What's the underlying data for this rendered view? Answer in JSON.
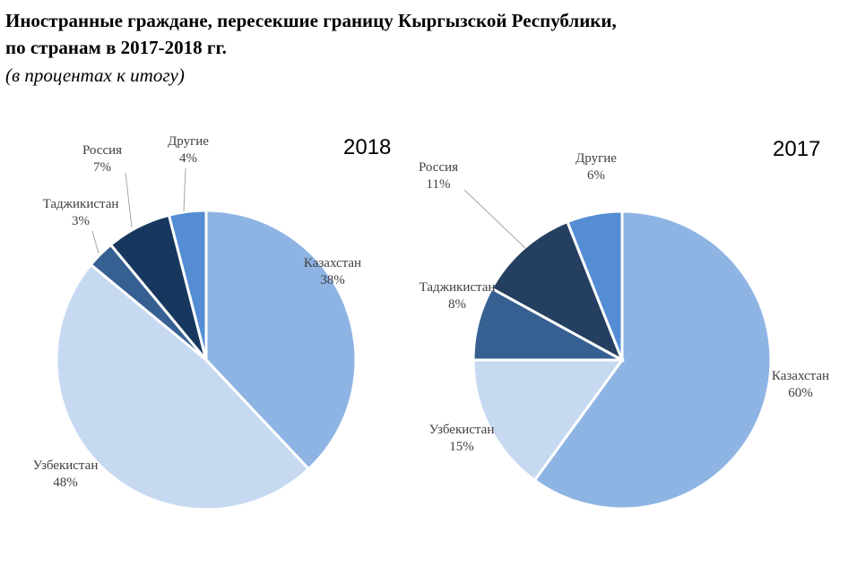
{
  "title_line1": "Иностранные граждане, пересекшие границу Кыргызской Республики,",
  "title_line2": "по странам в 2017-2018 гг.",
  "subtitle": "(в процентах к итогу)",
  "chart_data": [
    {
      "type": "pie",
      "title": "2018",
      "slices": [
        {
          "name": "Казахстан",
          "value": 38,
          "label": "38%",
          "color": "#8EB4E3"
        },
        {
          "name": "Узбекистан",
          "value": 48,
          "label": "48%",
          "color": "#C6D9F1"
        },
        {
          "name": "Таджикистан",
          "value": 3,
          "label": "3%",
          "color": "#376092"
        },
        {
          "name": "Россия",
          "value": 7,
          "label": "7%",
          "color": "#17375E"
        },
        {
          "name": "Другие",
          "value": 4,
          "label": "4%",
          "color": "#548DD4"
        }
      ]
    },
    {
      "type": "pie",
      "title": "2017",
      "slices": [
        {
          "name": "Казахстан",
          "value": 60,
          "label": "60%",
          "color": "#8EB4E3"
        },
        {
          "name": "Узбекистан",
          "value": 15,
          "label": "15%",
          "color": "#C6D9F1"
        },
        {
          "name": "Таджикистан",
          "value": 8,
          "label": "8%",
          "color": "#376092"
        },
        {
          "name": "Россия",
          "value": 11,
          "label": "11%",
          "color": "#243F60"
        },
        {
          "name": "Другие",
          "value": 6,
          "label": "6%",
          "color": "#548DD4"
        }
      ]
    }
  ]
}
